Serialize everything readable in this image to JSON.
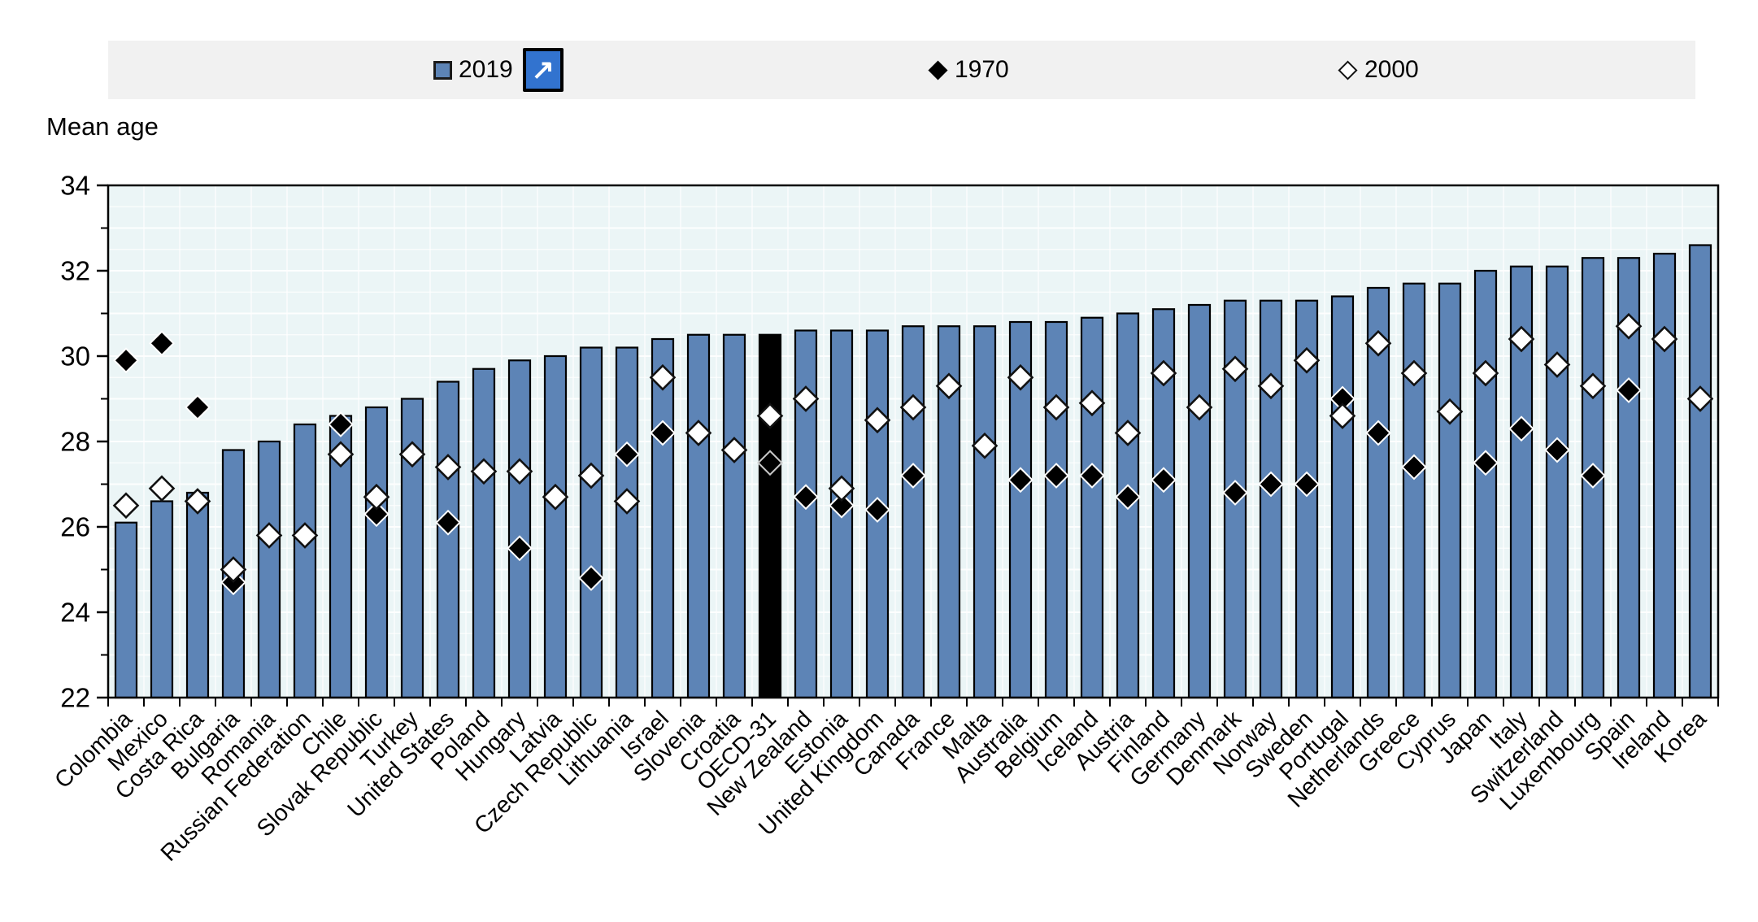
{
  "y_axis_title": "Mean age",
  "legend": {
    "background_color": "#f1f1f1",
    "items": [
      {
        "label": "2019",
        "marker": "blue-square",
        "marker_color": "#5d84b6"
      },
      {
        "label": "1970",
        "marker": "filled-diamond",
        "marker_color": "#000000"
      },
      {
        "label": "2000",
        "marker": "open-diamond",
        "marker_color": "#ffffff"
      }
    ],
    "open_chart_button": {
      "icon": "arrow-up-right",
      "glyph": "↗",
      "color": "#3273cf"
    }
  },
  "chart_data": {
    "type": "bar",
    "title": "",
    "ylabel": "Mean age",
    "ylim": [
      22,
      34
    ],
    "yticks": [
      22,
      24,
      26,
      28,
      30,
      32,
      34
    ],
    "grid": true,
    "plot_background": "#ebf5f6",
    "bar_color": "#5d84b6",
    "highlight_category": "OECD-31",
    "highlight_bar_color": "#000000",
    "legend_position": "top",
    "categories": [
      "Colombia",
      "Mexico",
      "Costa Rica",
      "Bulgaria",
      "Romania",
      "Russian Federation",
      "Chile",
      "Slovak Republic",
      "Turkey",
      "United States",
      "Poland",
      "Hungary",
      "Latvia",
      "Czech Republic",
      "Lithuania",
      "Israel",
      "Slovenia",
      "Croatia",
      "OECD-31",
      "New Zealand",
      "Estonia",
      "United Kingdom",
      "Canada",
      "France",
      "Malta",
      "Australia",
      "Belgium",
      "Iceland",
      "Austria",
      "Finland",
      "Germany",
      "Denmark",
      "Norway",
      "Sweden",
      "Portugal",
      "Netherlands",
      "Greece",
      "Cyprus",
      "Japan",
      "Italy",
      "Switzerland",
      "Luxembourg",
      "Spain",
      "Ireland",
      "Korea"
    ],
    "series": [
      {
        "name": "2019",
        "type": "bar",
        "values": [
          26.1,
          26.6,
          26.8,
          27.8,
          28.0,
          28.4,
          28.6,
          28.8,
          29.0,
          29.4,
          29.7,
          29.9,
          30.0,
          30.2,
          30.2,
          30.4,
          30.5,
          30.5,
          30.5,
          30.6,
          30.6,
          30.6,
          30.7,
          30.7,
          30.7,
          30.8,
          30.8,
          30.9,
          31.0,
          31.1,
          31.2,
          31.3,
          31.3,
          31.3,
          31.4,
          31.6,
          31.7,
          31.7,
          32.0,
          32.1,
          32.1,
          32.3,
          32.3,
          32.4,
          32.6
        ]
      },
      {
        "name": "1970",
        "type": "scatter",
        "marker": "filled-diamond",
        "values": [
          29.9,
          30.3,
          28.8,
          24.7,
          null,
          null,
          28.4,
          26.3,
          null,
          26.1,
          null,
          25.5,
          null,
          24.8,
          27.7,
          28.2,
          null,
          null,
          27.5,
          26.7,
          26.5,
          26.4,
          27.2,
          null,
          null,
          27.1,
          27.2,
          27.2,
          26.7,
          27.1,
          null,
          26.8,
          27.0,
          27.0,
          29.0,
          28.2,
          27.4,
          null,
          27.5,
          28.3,
          27.8,
          27.2,
          29.2,
          null,
          null
        ]
      },
      {
        "name": "2000",
        "type": "scatter",
        "marker": "open-diamond",
        "values": [
          26.5,
          26.9,
          26.6,
          25.0,
          25.8,
          25.8,
          27.7,
          26.7,
          27.7,
          27.4,
          27.3,
          27.3,
          26.7,
          27.2,
          26.6,
          29.5,
          28.2,
          27.8,
          28.6,
          29.0,
          26.9,
          28.5,
          28.8,
          29.3,
          27.9,
          29.5,
          28.8,
          28.9,
          28.2,
          29.6,
          28.8,
          29.7,
          29.3,
          29.9,
          28.6,
          30.3,
          29.6,
          28.7,
          29.6,
          30.4,
          29.8,
          29.3,
          30.7,
          30.4,
          29.0
        ]
      }
    ]
  }
}
